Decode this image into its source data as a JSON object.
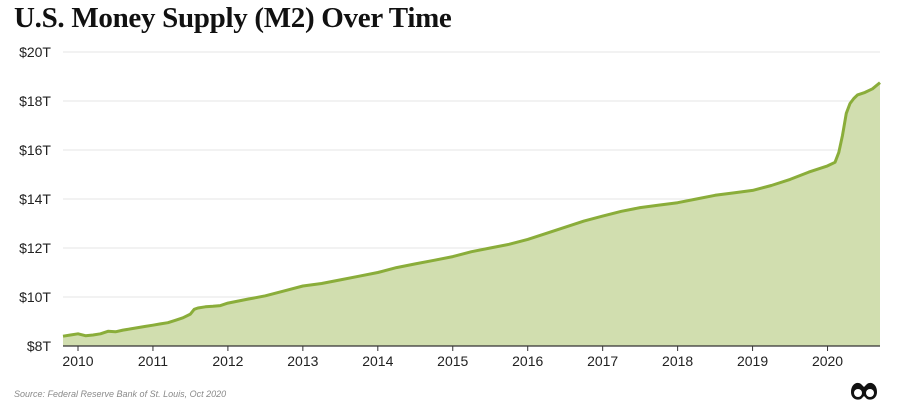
{
  "title": "U.S. Money Supply (M2) Over Time",
  "source": "Source: Federal Reserve Bank of St. Louis, Oct 2020",
  "colors": {
    "line": "#8aad3a",
    "fill": "#d1deaf",
    "grid": "#e6e6e6",
    "axis": "#333333"
  },
  "logo_icon": "binoculars-logo-icon",
  "chart_data": {
    "type": "area",
    "title": "U.S. Money Supply (M2) Over Time",
    "xlabel": "",
    "ylabel": "",
    "unit": "Trillions USD",
    "xlim": [
      2009.8,
      2020.7
    ],
    "ylim": [
      8,
      20
    ],
    "grid": true,
    "legend": "none",
    "x_ticks": [
      2010,
      2011,
      2012,
      2013,
      2014,
      2015,
      2016,
      2017,
      2018,
      2019,
      2020
    ],
    "x_tick_labels": [
      "2010",
      "2011",
      "2012",
      "2013",
      "2014",
      "2015",
      "2016",
      "2017",
      "2018",
      "2019",
      "2020"
    ],
    "y_ticks": [
      8,
      10,
      12,
      14,
      16,
      18,
      20
    ],
    "y_tick_labels": [
      "$8T",
      "$10T",
      "$12T",
      "$14T",
      "$16T",
      "$18T",
      "$20T"
    ],
    "series": [
      {
        "x": [
          2009.8,
          2009.9,
          2010.0,
          2010.1,
          2010.2,
          2010.3,
          2010.4,
          2010.5,
          2010.6,
          2010.7,
          2010.8,
          2010.9,
          2011.0,
          2011.1,
          2011.2,
          2011.3,
          2011.4,
          2011.5,
          2011.55,
          2011.6,
          2011.7,
          2011.8,
          2011.9,
          2012.0,
          2012.25,
          2012.5,
          2012.75,
          2013.0,
          2013.25,
          2013.5,
          2013.75,
          2014.0,
          2014.25,
          2014.5,
          2014.75,
          2015.0,
          2015.25,
          2015.5,
          2015.75,
          2016.0,
          2016.25,
          2016.5,
          2016.75,
          2017.0,
          2017.25,
          2017.5,
          2017.75,
          2018.0,
          2018.25,
          2018.5,
          2018.75,
          2019.0,
          2019.25,
          2019.5,
          2019.75,
          2020.0,
          2020.1,
          2020.15,
          2020.2,
          2020.25,
          2020.3,
          2020.35,
          2020.4,
          2020.5,
          2020.6,
          2020.7
        ],
        "y": [
          8.4,
          8.45,
          8.5,
          8.42,
          8.45,
          8.5,
          8.6,
          8.58,
          8.65,
          8.7,
          8.75,
          8.8,
          8.85,
          8.9,
          8.95,
          9.05,
          9.15,
          9.3,
          9.5,
          9.55,
          9.6,
          9.62,
          9.65,
          9.75,
          9.9,
          10.05,
          10.25,
          10.45,
          10.55,
          10.7,
          10.85,
          11.0,
          11.2,
          11.35,
          11.5,
          11.65,
          11.85,
          12.0,
          12.15,
          12.35,
          12.6,
          12.85,
          13.1,
          13.3,
          13.5,
          13.65,
          13.75,
          13.85,
          14.0,
          14.15,
          14.25,
          14.35,
          14.55,
          14.8,
          15.1,
          15.35,
          15.5,
          15.9,
          16.6,
          17.5,
          17.9,
          18.1,
          18.25,
          18.35,
          18.5,
          18.75
        ]
      }
    ]
  }
}
